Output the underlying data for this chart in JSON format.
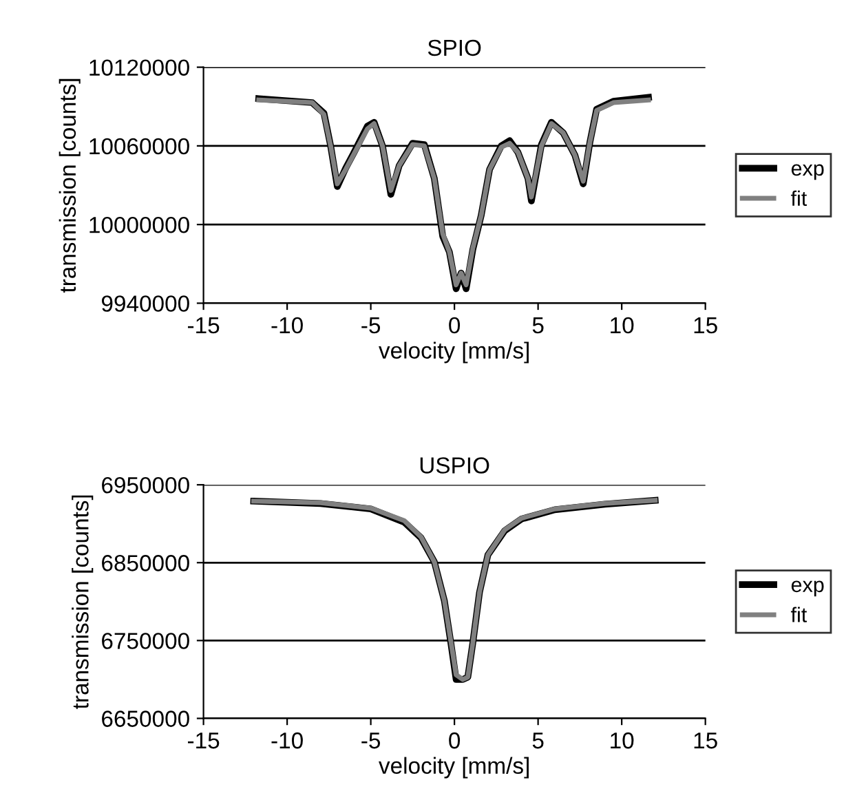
{
  "chart_data": [
    {
      "type": "line",
      "title": "SPIO",
      "xlabel": "velocity [mm/s]",
      "ylabel": "transmission [counts]",
      "xlim": [
        -15,
        15
      ],
      "xticks": [
        -15,
        -10,
        -5,
        0,
        5,
        10,
        15
      ],
      "ylim": [
        9940000,
        10120000
      ],
      "yticks": [
        9940000,
        10000000,
        10060000,
        10120000
      ],
      "grid": "y",
      "legend": "right",
      "x": [
        -11.7,
        -8.5,
        -7.8,
        -7.4,
        -7.0,
        -6.5,
        -6.0,
        -5.2,
        -4.8,
        -4.3,
        -3.8,
        -3.3,
        -2.5,
        -1.8,
        -1.2,
        -0.7,
        -0.3,
        0.1,
        0.4,
        0.7,
        1.1,
        1.6,
        2.1,
        2.8,
        3.3,
        3.8,
        4.4,
        4.6,
        5.2,
        5.8,
        6.5,
        7.2,
        7.7,
        8.1,
        8.5,
        9.5,
        11.6
      ],
      "series": [
        {
          "name": "exp",
          "color": "#000000",
          "values": [
            10096000,
            10093000,
            10085000,
            10060000,
            10029000,
            10043000,
            10055000,
            10075000,
            10078000,
            10060000,
            10023000,
            10045000,
            10062000,
            10061000,
            10035000,
            9991000,
            9979000,
            9951000,
            9963000,
            9951000,
            9981000,
            10007000,
            10042000,
            10060000,
            10064000,
            10055000,
            10035000,
            10018000,
            10061000,
            10078000,
            10070000,
            10053000,
            10031000,
            10063000,
            10088000,
            10094000,
            10097000
          ]
        },
        {
          "name": "fit",
          "color": "#808080",
          "values": [
            10095000,
            10093000,
            10084000,
            10060000,
            10031000,
            10042000,
            10054000,
            10073000,
            10077000,
            10060000,
            10026000,
            10045000,
            10061000,
            10060000,
            10035000,
            9993000,
            9979000,
            9954000,
            9963000,
            9954000,
            9982000,
            10007000,
            10042000,
            10059000,
            10062000,
            10055000,
            10035000,
            10021000,
            10060000,
            10077000,
            10070000,
            10053000,
            10033000,
            10063000,
            10087000,
            10093000,
            10095000
          ]
        }
      ]
    },
    {
      "type": "line",
      "title": "USPIO",
      "xlabel": "velocity [mm/s]",
      "ylabel": "transmission [counts]",
      "xlim": [
        -15,
        15
      ],
      "xticks": [
        -15,
        -10,
        -5,
        0,
        5,
        10,
        15
      ],
      "ylim": [
        6650000,
        6950000
      ],
      "yticks": [
        6650000,
        6750000,
        6850000,
        6950000
      ],
      "grid": "y",
      "legend": "right",
      "x": [
        -12,
        -8,
        -5,
        -3,
        -2,
        -1.2,
        -0.6,
        -0.2,
        0.1,
        0.5,
        0.8,
        1.1,
        1.5,
        2,
        3,
        4,
        6,
        9,
        12
      ],
      "series": [
        {
          "name": "exp",
          "color": "#000000",
          "values": [
            6929000,
            6926000,
            6919000,
            6902000,
            6882000,
            6851000,
            6801000,
            6745000,
            6700000,
            6700000,
            6703000,
            6747000,
            6812000,
            6860000,
            6891000,
            6906000,
            6918000,
            6925000,
            6930000
          ]
        },
        {
          "name": "fit",
          "color": "#808080",
          "values": [
            6929000,
            6927000,
            6920000,
            6904000,
            6883000,
            6851000,
            6801000,
            6747000,
            6706000,
            6700000,
            6703000,
            6747000,
            6812000,
            6860000,
            6892000,
            6907000,
            6919000,
            6926000,
            6930000
          ]
        }
      ]
    }
  ]
}
